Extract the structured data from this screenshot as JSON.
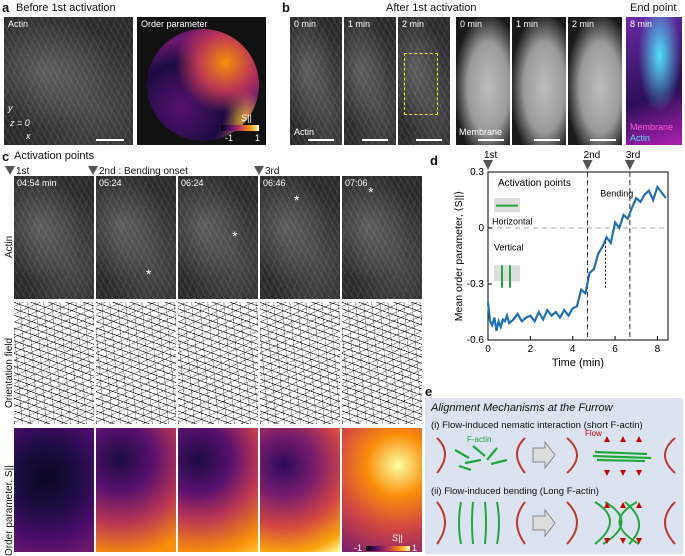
{
  "panel_a": {
    "label": "a",
    "title": "Before 1st activation",
    "img1_label": "Actin",
    "img2_label": "Order parameter",
    "colorbar_label": "S||",
    "colorbar_min": "-1",
    "colorbar_max": "1",
    "axis_y": "y",
    "axis_z": "z = 0",
    "axis_x": "x"
  },
  "panel_b": {
    "label": "b",
    "title": "After 1st activation",
    "actin_times": [
      "0 min",
      "1 min",
      "2 min"
    ],
    "actin_label": "Actin",
    "membrane_times": [
      "0 min",
      "1 min",
      "2 min"
    ],
    "membrane_label": "Membrane",
    "endpoint_title": "End point",
    "endpoint_time": "8 min",
    "endpoint_label1": "Membrane",
    "endpoint_label2": "Actin"
  },
  "panel_c": {
    "label": "c",
    "title": "Activation points",
    "markers": [
      "1st",
      "2nd : Bending onset",
      "3rd"
    ],
    "timestamps": [
      "04:54 min",
      "05:24",
      "06:24",
      "06:46",
      "07:06"
    ],
    "row_labels": [
      "Actin",
      "Orientation field",
      "Order parameter, S||"
    ],
    "colorbar_label": "S||",
    "colorbar_min": "-1",
    "colorbar_max": "1"
  },
  "panel_d": {
    "label": "d",
    "markers": [
      "1st",
      "2nd",
      "3rd"
    ],
    "legend_title": "Activation points",
    "annotations": {
      "horizontal": "Horizontal",
      "vertical": "Vertical",
      "bending": "Bending"
    }
  },
  "chart_data": {
    "type": "line",
    "xlabel": "Time (min)",
    "ylabel": "Mean order parameter, ⟨S||⟩",
    "xlim": [
      0,
      8.5
    ],
    "ylim": [
      -0.6,
      0.3
    ],
    "xticks": [
      "0",
      "2",
      "4",
      "6",
      "8"
    ],
    "yticks": [
      "0.3",
      "0",
      "-0.3",
      "-0.6"
    ],
    "vlines": [
      4.7,
      6.7
    ],
    "hline": 0,
    "series": [
      {
        "x": [
          0,
          0.1,
          0.2,
          0.3,
          0.4,
          0.5,
          0.6,
          0.7,
          0.8,
          0.9,
          1.0,
          1.2,
          1.4,
          1.6,
          1.8,
          2.0,
          2.2,
          2.4,
          2.6,
          2.8,
          3.0,
          3.2,
          3.4,
          3.6,
          3.8,
          4.0,
          4.2,
          4.4,
          4.6,
          4.8,
          5.0,
          5.2,
          5.4,
          5.6,
          5.8,
          6.0,
          6.2,
          6.4,
          6.6,
          6.8,
          7.0,
          7.2,
          7.4,
          7.6,
          7.8,
          8.0,
          8.2,
          8.4
        ],
        "y": [
          -0.4,
          -0.5,
          -0.52,
          -0.48,
          -0.55,
          -0.5,
          -0.53,
          -0.49,
          -0.5,
          -0.47,
          -0.51,
          -0.49,
          -0.46,
          -0.5,
          -0.48,
          -0.47,
          -0.5,
          -0.45,
          -0.49,
          -0.44,
          -0.47,
          -0.45,
          -0.48,
          -0.44,
          -0.47,
          -0.43,
          -0.42,
          -0.33,
          -0.35,
          -0.24,
          -0.22,
          -0.14,
          -0.1,
          -0.05,
          -0.08,
          0.03,
          0.0,
          0.07,
          0.05,
          0.11,
          0.16,
          0.14,
          0.18,
          0.2,
          0.15,
          0.22,
          0.19,
          0.16
        ]
      }
    ]
  },
  "panel_e": {
    "label": "e",
    "title": "Alignment Mechanisms at the Furrow",
    "mech1": "(i) Flow-induced nematic interaction (short F-actin)",
    "mech2": "(ii) Flow-induced bending (Long F-actin)",
    "factin_label": "F-actin",
    "flow_label": "Flow"
  },
  "colors": {
    "accent": "#1f6fb6",
    "inferno_dark": "#1b0c41",
    "inferno_bright": "#fcc32b"
  }
}
